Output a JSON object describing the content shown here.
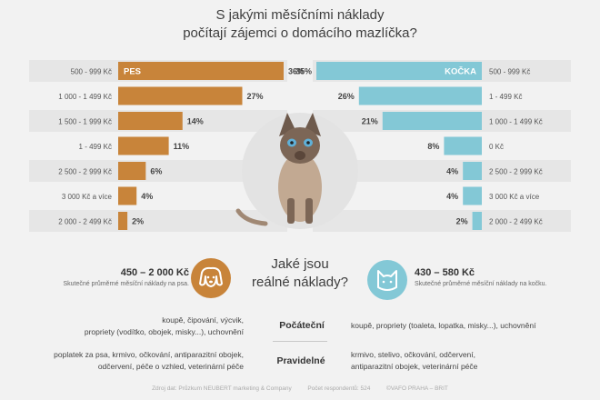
{
  "title": {
    "line1": "S jakými měsíčními náklady",
    "line2": "počítají zájemci o domácího mazlíčka?"
  },
  "colors": {
    "dog": "#c8843a",
    "cat": "#83c8d6",
    "band": "#e6e6e6",
    "text": "#555555"
  },
  "chart_data": [
    {
      "type": "bar",
      "side": "left",
      "series_label": "PES",
      "categories": [
        "500 - 999 Kč",
        "1 000 - 1 499 Kč",
        "1 500 - 1 999 Kč",
        "1 - 499 Kč",
        "2 500 - 2 999 Kč",
        "3 000 Kč a více",
        "2 000 - 2 499 Kč"
      ],
      "values": [
        36,
        27,
        14,
        11,
        6,
        4,
        2
      ],
      "value_labels": [
        "36%",
        "27%",
        "14%",
        "11%",
        "6%",
        "4%",
        "2%"
      ],
      "xlim": [
        0,
        36
      ]
    },
    {
      "type": "bar",
      "side": "right",
      "series_label": "KOČKA",
      "categories": [
        "500 - 999 Kč",
        "1 - 499 Kč",
        "1 000 - 1 499 Kč",
        "0 Kč",
        "2 500 - 2 999 Kč",
        "3 000 Kč a více",
        "2 000 - 2 499 Kč"
      ],
      "values": [
        35,
        26,
        21,
        8,
        4,
        4,
        2
      ],
      "value_labels": [
        "35%",
        "26%",
        "21%",
        "8%",
        "4%",
        "4%",
        "2%"
      ],
      "xlim": [
        0,
        35
      ]
    }
  ],
  "question": {
    "line1": "Jaké jsou",
    "line2": "reálné náklady?"
  },
  "dog": {
    "amount": "450 – 2 000 Kč",
    "caption": "Skutečné průměrné měsíční náklady na psa.",
    "icon": "dog-face-icon"
  },
  "cat": {
    "amount": "430 – 580 Kč",
    "caption": "Skutečné průměrné měsíční náklady na kočku.",
    "icon": "cat-face-icon"
  },
  "costs": {
    "initial_label": "Počáteční",
    "regular_label": "Pravidelné",
    "dog_initial_1": "koupě, čipování, výcvik,",
    "dog_initial_2": "propriety (vodítko, obojek, misky...), uchovnění",
    "cat_initial": "koupě, propriety (toaleta, lopatka, misky...), uchovnění",
    "dog_regular_1": "poplatek za psa, krmivo, očkování, antiparazitní obojek,",
    "dog_regular_2": "odčervení, péče o vzhled, veterinární péče",
    "cat_regular_1": "krmivo, stelivo, očkování, odčervení,",
    "cat_regular_2": "antiparazitní obojek, veterinární péče"
  },
  "footer": {
    "source": "Zdroj dat: Průzkum NEUBERT marketing & Company",
    "respondents": "Počet respondentů: 524",
    "credit": "©VAFO PRAHA – BRIT"
  }
}
